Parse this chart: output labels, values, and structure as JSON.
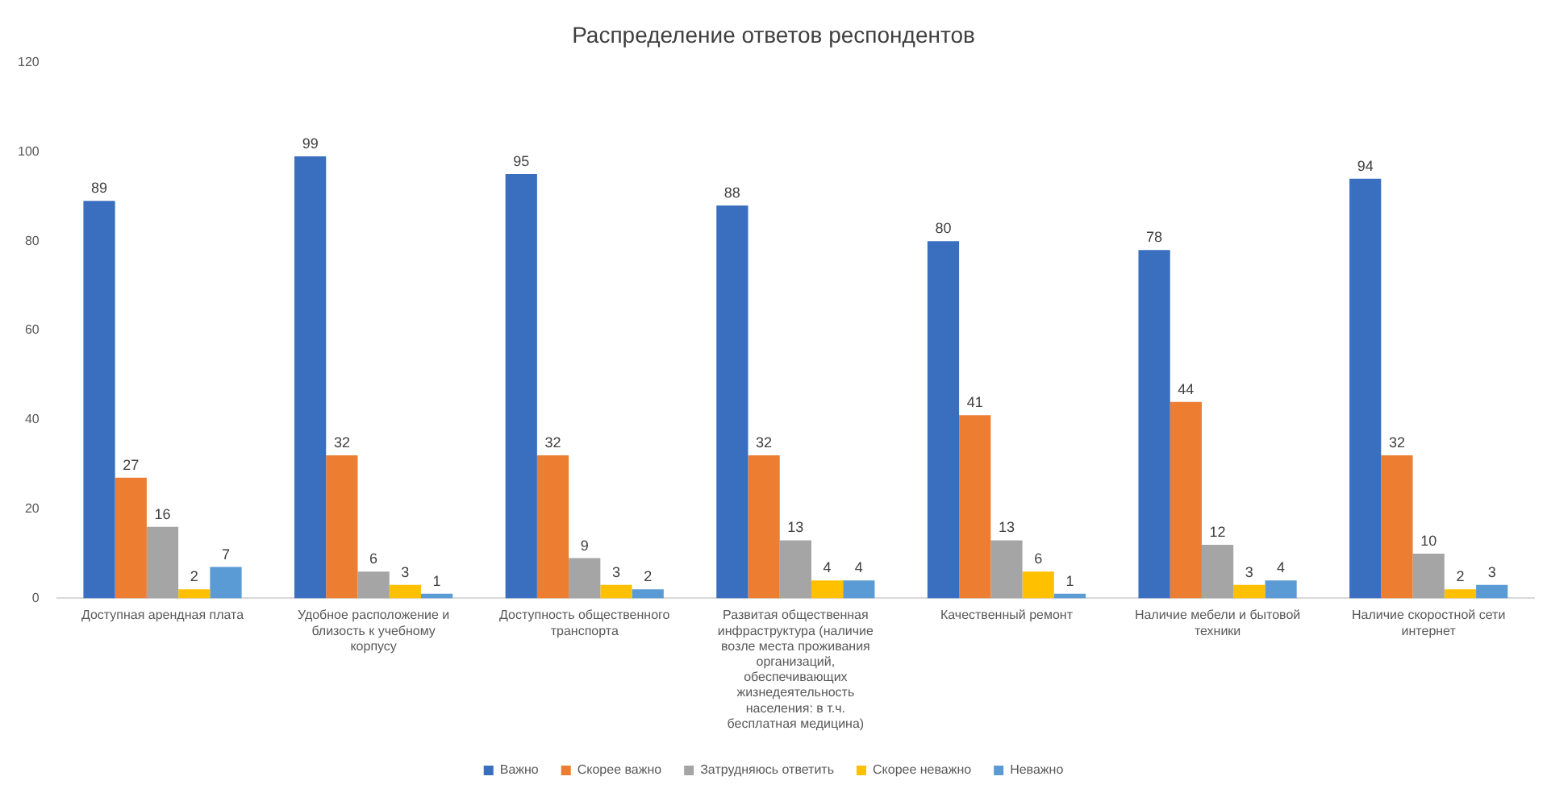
{
  "chart_data": {
    "type": "bar",
    "title": "Распределение ответов респондентов",
    "categories": [
      "Доступная арендная плата",
      "Удобное расположение и близость к учебному корпусу",
      "Доступность общественного транспорта",
      "Развитая общественная инфраструктура (наличие возле места проживания организаций, обеспечивающих жизнедеятельность населения: в т.ч. бесплатная медицина)",
      "Качественный ремонт",
      "Наличие мебели и бытовой техники",
      "Наличие скоростной сети интернет"
    ],
    "series": [
      {
        "name": "Важно",
        "color": "#3a6fbf",
        "values": [
          89,
          99,
          95,
          88,
          80,
          78,
          94
        ]
      },
      {
        "name": "Скорее важно",
        "color": "#ed7d31",
        "values": [
          27,
          32,
          32,
          32,
          41,
          44,
          32
        ]
      },
      {
        "name": "Затрудняюсь ответить",
        "color": "#a5a5a5",
        "values": [
          16,
          6,
          9,
          13,
          13,
          12,
          10
        ]
      },
      {
        "name": "Скорее неважно",
        "color": "#ffc000",
        "values": [
          2,
          3,
          3,
          4,
          6,
          3,
          2
        ]
      },
      {
        "name": "Неважно",
        "color": "#5b9bd5",
        "values": [
          7,
          1,
          2,
          4,
          1,
          4,
          3
        ]
      }
    ],
    "ylim": [
      0,
      120
    ],
    "yticks": [
      0,
      20,
      40,
      60,
      80,
      100,
      120
    ],
    "grid": false,
    "legend": "bottom",
    "data_labels": true
  }
}
